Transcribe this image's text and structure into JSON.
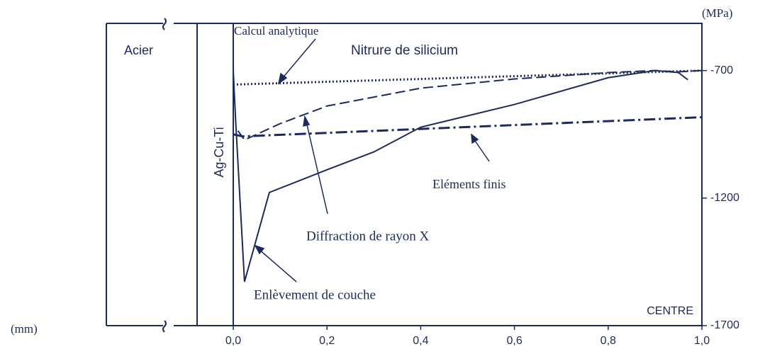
{
  "chart_data": {
    "type": "line",
    "x_unit_label": "(mm)",
    "y_unit_label": "(MPa)",
    "annotations": [
      "Acier",
      "Nitrure de silicium",
      "Ag-Cu-Ti",
      "CENTRE"
    ],
    "xlim": [
      0,
      1.0
    ],
    "xticks": [
      {
        "value": 0,
        "label": "0,0"
      },
      {
        "value": 0.2,
        "label": "0,2"
      },
      {
        "value": 0.4,
        "label": "0,4"
      },
      {
        "value": 0.6,
        "label": "0,6"
      },
      {
        "value": 0.8,
        "label": "0,8"
      },
      {
        "value": 1.0,
        "label": "1,0"
      }
    ],
    "ylim": [
      -1700,
      -515
    ],
    "yticks": [
      -700,
      -1200,
      -1700
    ],
    "grid": false,
    "series": [
      {
        "name": "Calcul analytique",
        "color": "#1c2a5e",
        "dash": "dotted",
        "x": [
          0,
          1.0
        ],
        "values": [
          -755,
          -700
        ]
      },
      {
        "name": "Eléments finis",
        "color": "#1c2a5e",
        "dash": "dashdot",
        "x": [
          0,
          0.02,
          1.0
        ],
        "values": [
          -950,
          -958,
          -883
        ]
      },
      {
        "name": "Diffraction de rayon X",
        "color": "#1c2a5e",
        "dash": "dashed",
        "x": [
          0.01,
          0.024,
          0.1,
          0.2,
          0.4,
          0.6,
          0.8,
          0.9,
          0.95,
          1.0
        ],
        "values": [
          -936,
          -972,
          -908,
          -839,
          -769,
          -733,
          -708,
          -700,
          -705,
          -700
        ]
      },
      {
        "name": "Enlèvement de couche",
        "color": "#1c2a5e",
        "dash": "solid",
        "x": [
          0,
          0.005,
          0.024,
          0.077,
          0.2,
          0.3,
          0.4,
          0.6,
          0.8,
          0.9,
          0.95,
          0.97
        ],
        "values": [
          -700,
          -894,
          -1528,
          -1178,
          -1089,
          -1019,
          -922,
          -833,
          -728,
          -700,
          -708,
          -736
        ]
      }
    ]
  }
}
